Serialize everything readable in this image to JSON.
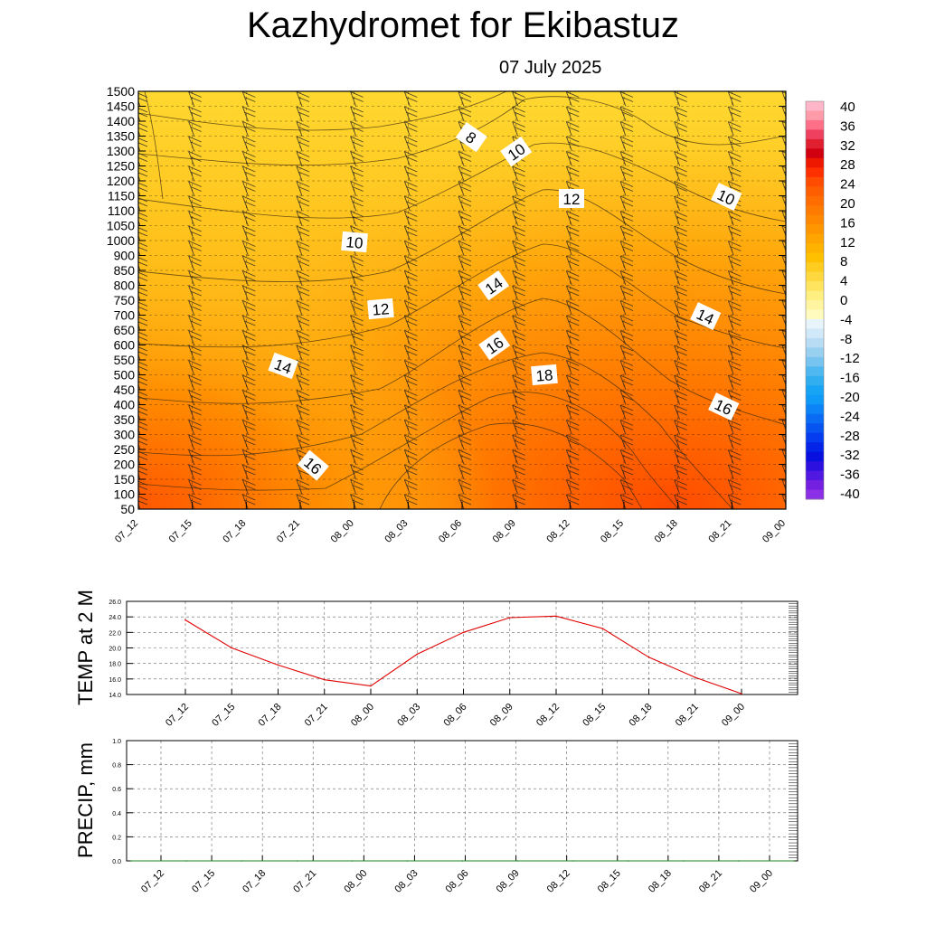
{
  "title": "Kazhydromet  for Ekibastuz",
  "subtitle": "07 July 2025",
  "chart_data": [
    {
      "type": "heatmap",
      "name": "cross-section",
      "x_categories": [
        "07_12",
        "07_15",
        "07_18",
        "07_21",
        "08_00",
        "08_03",
        "08_06",
        "08_09",
        "08_12",
        "08_15",
        "08_18",
        "08_21",
        "09_00"
      ],
      "y_ticks": [
        50,
        100,
        150,
        200,
        250,
        300,
        350,
        400,
        450,
        500,
        550,
        600,
        650,
        700,
        750,
        800,
        850,
        900,
        1000,
        1050,
        1100,
        1150,
        1200,
        1250,
        1300,
        1350,
        1400,
        1450,
        1500
      ],
      "colorbar_ticks": [
        "40",
        "36",
        "32",
        "28",
        "24",
        "20",
        "16",
        "12",
        "8",
        "4",
        "0",
        "-4",
        "-8",
        "-12",
        "-16",
        "-20",
        "-24",
        "-28",
        "-32",
        "-36",
        "-40"
      ],
      "contour_labels": [
        {
          "text": "8"
        },
        {
          "text": "10"
        },
        {
          "text": "12"
        },
        {
          "text": "10"
        },
        {
          "text": "10"
        },
        {
          "text": "14"
        },
        {
          "text": "12"
        },
        {
          "text": "14"
        },
        {
          "text": "16"
        },
        {
          "text": "14"
        },
        {
          "text": "18"
        },
        {
          "text": "16"
        },
        {
          "text": "16"
        }
      ]
    },
    {
      "type": "line",
      "name": "temp",
      "ylabel": "TEMP at 2 M",
      "categories": [
        "07_12",
        "07_15",
        "07_18",
        "07_21",
        "08_00",
        "08_03",
        "08_06",
        "08_09",
        "08_12",
        "08_15",
        "08_18",
        "08_21",
        "09_00"
      ],
      "values": [
        23.6,
        20.0,
        17.8,
        15.9,
        15.1,
        19.2,
        22.0,
        23.9,
        24.1,
        22.5,
        18.8,
        16.2,
        14.1
      ],
      "y_ticks": [
        "26.0",
        "24.0",
        "22.0",
        "20.0",
        "18.0",
        "16.0",
        "14.0"
      ],
      "ylim": [
        14,
        26
      ],
      "color": "#e00000",
      "grid": true
    },
    {
      "type": "line",
      "name": "precip",
      "ylabel": "PRECIP, mm",
      "categories": [
        "07_12",
        "07_15",
        "07_18",
        "07_21",
        "08_00",
        "08_03",
        "08_06",
        "08_09",
        "08_12",
        "08_15",
        "08_18",
        "08_21",
        "09_00"
      ],
      "values": [
        0,
        0,
        0,
        0,
        0,
        0,
        0,
        0,
        0,
        0,
        0,
        0,
        0
      ],
      "y_ticks": [
        "1.0",
        "0.8",
        "0.6",
        "0.4",
        "0.2",
        "0.0"
      ],
      "ylim": [
        0,
        1
      ],
      "color": "#1a8a1a",
      "grid": true
    }
  ]
}
